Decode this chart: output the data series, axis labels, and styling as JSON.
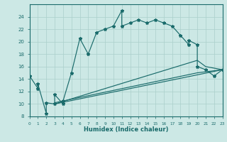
{
  "xlabel": "Humidex (Indice chaleur)",
  "bg_color": "#cce8e5",
  "grid_color": "#aacfcb",
  "line_color": "#1a6b6b",
  "xlim": [
    0,
    23
  ],
  "ylim": [
    8,
    26
  ],
  "yticks": [
    8,
    10,
    12,
    14,
    16,
    18,
    20,
    22,
    24
  ],
  "xticks": [
    0,
    1,
    2,
    3,
    4,
    5,
    6,
    7,
    8,
    9,
    10,
    11,
    12,
    13,
    14,
    15,
    16,
    17,
    18,
    19,
    20,
    21,
    22,
    23
  ],
  "main_x": [
    0,
    1,
    1,
    2,
    2,
    3,
    3,
    4,
    4,
    5,
    6,
    7,
    8,
    9,
    10,
    11,
    11,
    12,
    13,
    14,
    15,
    16,
    17,
    18,
    19,
    19,
    20,
    20,
    21,
    22,
    23
  ],
  "main_y": [
    14.5,
    12.5,
    13.2,
    8.5,
    10.2,
    10.0,
    11.5,
    10.0,
    10.5,
    15.0,
    20.5,
    18.0,
    21.5,
    22.0,
    22.5,
    25.0,
    22.5,
    23.0,
    23.5,
    23.0,
    23.5,
    23.0,
    22.5,
    21.0,
    19.5,
    20.2,
    19.5,
    16.0,
    15.5,
    14.5,
    15.5
  ],
  "trend1_x": [
    3,
    23
  ],
  "trend1_y": [
    10.0,
    15.5
  ],
  "trend2_x": [
    3,
    20,
    21,
    23
  ],
  "trend2_y": [
    10.0,
    17.0,
    16.0,
    15.5
  ],
  "trend3_x": [
    3,
    20,
    23
  ],
  "trend3_y": [
    10.2,
    15.0,
    15.5
  ]
}
